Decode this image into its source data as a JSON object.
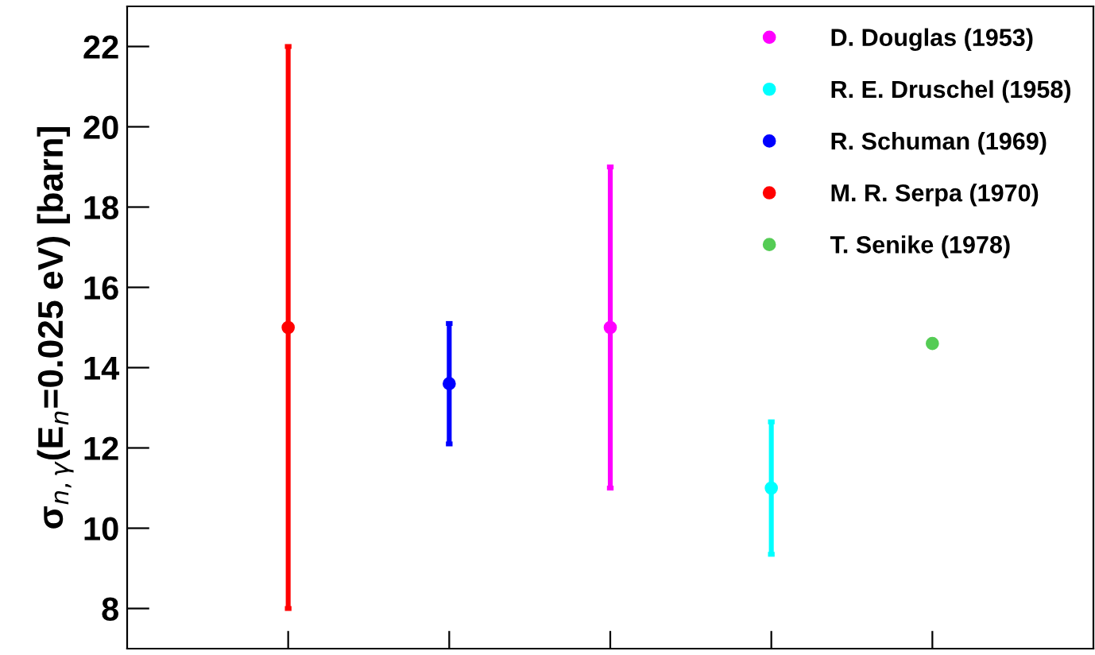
{
  "chart_data": {
    "type": "scatter",
    "ylabel": "σ$_{n,γ}$(E$_{n}$=0.025 eV) [barn]",
    "categories": [
      null,
      null,
      null,
      null,
      null
    ],
    "series": [
      {
        "name": "D. Douglas (1953)",
        "color": "#ff00ff",
        "values": [
          null,
          null,
          15,
          null,
          null
        ],
        "errors": [
          null,
          null,
          4,
          null,
          null
        ]
      },
      {
        "name": "R. E. Druschel (1958)",
        "color": "#00ffff",
        "values": [
          null,
          null,
          null,
          11,
          null
        ],
        "errors": [
          null,
          null,
          null,
          1.65,
          null
        ]
      },
      {
        "name": "R. Schuman (1969)",
        "color": "#0000ff",
        "values": [
          null,
          13.6,
          null,
          null,
          null
        ],
        "errors": [
          null,
          1.5,
          null,
          null,
          null
        ]
      },
      {
        "name": "M. R. Serpa (1970)",
        "color": "#ff0000",
        "values": [
          15,
          null,
          null,
          null,
          null
        ],
        "errors": [
          7,
          null,
          null,
          null,
          null
        ]
      },
      {
        "name": "T. Senike (1978)",
        "color": "#55cc55",
        "values": [
          null,
          null,
          null,
          null,
          14.6
        ]
      }
    ],
    "ylim": [
      7,
      23
    ],
    "yticks": [
      8,
      10,
      12,
      14,
      16,
      18,
      20,
      22
    ],
    "tick_labels": "y",
    "legend": "top right",
    "marker": "circle",
    "grid": false
  }
}
